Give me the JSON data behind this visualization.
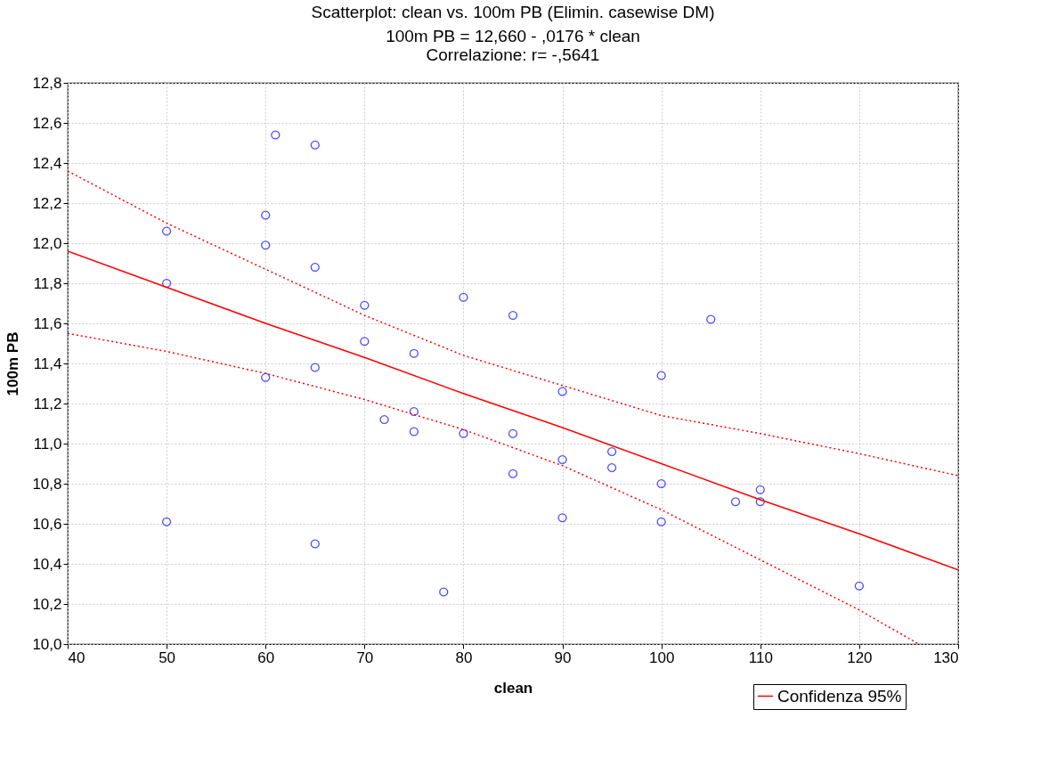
{
  "chart_data": {
    "type": "scatter",
    "title": "Scatterplot: clean vs. 100m PB (Elimin. casewise DM)",
    "subtitle": [
      "100m PB = 12,660 - ,0176  * clean",
      "Correlazione: r= -,5641"
    ],
    "xlabel": "clean",
    "ylabel": "100m PB",
    "xlim": [
      40,
      130
    ],
    "xticks": [
      40,
      50,
      60,
      70,
      80,
      90,
      100,
      110,
      120,
      130
    ],
    "ylim": [
      10.0,
      12.8
    ],
    "yticks": [
      {
        "value": 10.0,
        "label": "10,0"
      },
      {
        "value": 10.2,
        "label": "10,2"
      },
      {
        "value": 10.4,
        "label": "10,4"
      },
      {
        "value": 10.6,
        "label": "10,6"
      },
      {
        "value": 10.8,
        "label": "10,8"
      },
      {
        "value": 11.0,
        "label": "11,0"
      },
      {
        "value": 11.2,
        "label": "11,2"
      },
      {
        "value": 11.4,
        "label": "11,4"
      },
      {
        "value": 11.6,
        "label": "11,6"
      },
      {
        "value": 11.8,
        "label": "11,8"
      },
      {
        "value": 12.0,
        "label": "12,0"
      },
      {
        "value": 12.2,
        "label": "12,2"
      },
      {
        "value": 12.4,
        "label": "12,4"
      },
      {
        "value": 12.6,
        "label": "12,6"
      },
      {
        "value": 12.8,
        "label": "12,8"
      }
    ],
    "grid": true,
    "legend": "bottom right",
    "series": [
      {
        "color": "#0000ff",
        "marker": "circle",
        "x": [
          50,
          50,
          50,
          61,
          65,
          60,
          60,
          65,
          60,
          65,
          65,
          70,
          70,
          72,
          75,
          75,
          75,
          78,
          80,
          80,
          85,
          85,
          85,
          90,
          90,
          90,
          95,
          95,
          100,
          100,
          100,
          105,
          107.5,
          110,
          110,
          120
        ],
        "values": [
          12.06,
          11.8,
          10.61,
          12.54,
          12.49,
          12.14,
          11.99,
          11.88,
          11.33,
          11.38,
          10.5,
          11.69,
          11.51,
          11.12,
          11.45,
          11.16,
          11.06,
          10.26,
          11.73,
          11.05,
          11.64,
          11.05,
          10.85,
          11.26,
          10.92,
          10.63,
          10.96,
          10.88,
          11.34,
          10.8,
          10.61,
          11.62,
          10.71,
          10.77,
          10.71,
          10.29
        ]
      },
      {
        "type": "line",
        "name": "Confidenza 95%",
        "color": "#ff0000",
        "line_style": "solid",
        "x": [
          40,
          50,
          60,
          70,
          80,
          90,
          100,
          110,
          120,
          130
        ],
        "values": [
          11.96,
          11.78,
          11.6,
          11.43,
          11.25,
          11.08,
          10.9,
          10.72,
          10.55,
          10.37
        ]
      },
      {
        "type": "line",
        "color": "#ff0000",
        "line_style": "dotted",
        "x": [
          40,
          50,
          60,
          70,
          80,
          90,
          100,
          110,
          120,
          130
        ],
        "values": [
          12.36,
          12.1,
          11.87,
          11.64,
          11.44,
          11.29,
          11.14,
          11.05,
          10.95,
          10.84
        ]
      },
      {
        "type": "line",
        "color": "#ff0000",
        "line_style": "dotted",
        "x": [
          40,
          50,
          60,
          70,
          80,
          90,
          100,
          110,
          120,
          126
        ],
        "values": [
          11.55,
          11.46,
          11.35,
          11.22,
          11.07,
          10.89,
          10.67,
          10.42,
          10.17,
          10.0
        ]
      }
    ]
  }
}
